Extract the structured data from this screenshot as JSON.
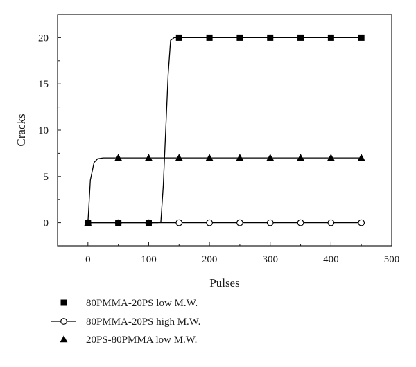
{
  "chart_data": {
    "type": "line",
    "title": "",
    "xlabel": "Pulses",
    "ylabel": "Cracks",
    "xlim": [
      -50,
      500
    ],
    "ylim": [
      -2.5,
      22.5
    ],
    "xticks": [
      0,
      100,
      200,
      300,
      400,
      500
    ],
    "yticks": [
      0,
      5,
      10,
      15,
      20
    ],
    "grid": false,
    "legend_position": "below",
    "series": [
      {
        "name": "80PMMA-20PS low M.W.",
        "marker": "filled-square",
        "points": [
          [
            0,
            0
          ],
          [
            50,
            0
          ],
          [
            100,
            0
          ],
          [
            150,
            20
          ],
          [
            200,
            20
          ],
          [
            250,
            20
          ],
          [
            300,
            20
          ],
          [
            350,
            20
          ],
          [
            400,
            20
          ],
          [
            450,
            20
          ]
        ],
        "curve": [
          [
            0,
            0
          ],
          [
            115,
            0
          ],
          [
            120,
            0.1
          ],
          [
            124,
            4
          ],
          [
            128,
            10
          ],
          [
            132,
            16
          ],
          [
            136,
            19.7
          ],
          [
            142,
            20
          ],
          [
            450,
            20
          ]
        ]
      },
      {
        "name": "80PMMA-20PS high M.W.",
        "marker": "open-circle",
        "points": [
          [
            0,
            0
          ],
          [
            50,
            0
          ],
          [
            100,
            0
          ],
          [
            150,
            0
          ],
          [
            200,
            0
          ],
          [
            250,
            0
          ],
          [
            300,
            0
          ],
          [
            350,
            0
          ],
          [
            400,
            0
          ],
          [
            450,
            0
          ]
        ],
        "curve": [
          [
            0,
            0
          ],
          [
            450,
            0
          ]
        ]
      },
      {
        "name": "20PS-80PMMA low M.W.",
        "marker": "filled-triangle",
        "points": [
          [
            0,
            0
          ],
          [
            50,
            7
          ],
          [
            100,
            7
          ],
          [
            150,
            7
          ],
          [
            200,
            7
          ],
          [
            250,
            7
          ],
          [
            300,
            7
          ],
          [
            350,
            7
          ],
          [
            400,
            7
          ],
          [
            450,
            7
          ]
        ],
        "curve": [
          [
            0,
            0
          ],
          [
            4,
            4.6
          ],
          [
            10,
            6.5
          ],
          [
            16,
            6.9
          ],
          [
            25,
            7
          ],
          [
            450,
            7
          ]
        ]
      }
    ]
  }
}
